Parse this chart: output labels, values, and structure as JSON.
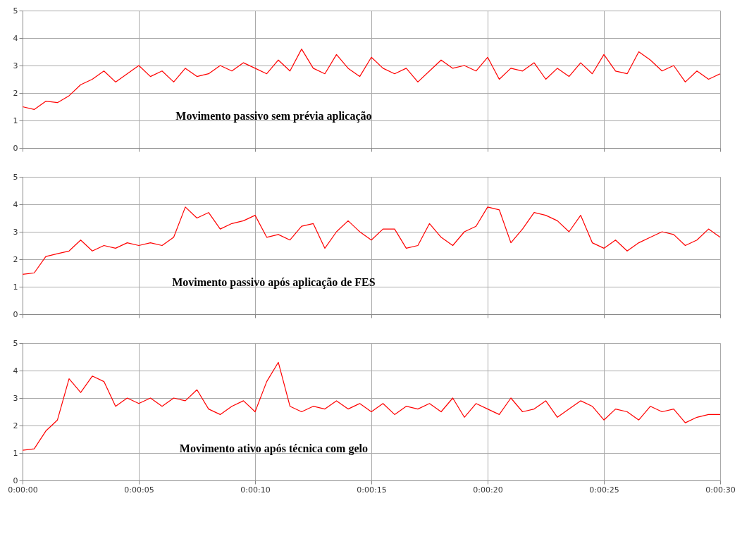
{
  "chart_data": [
    {
      "type": "line",
      "annotations": [
        "Movimento passivo sem prévia aplicação"
      ],
      "xlim": [
        0,
        30
      ],
      "xticks": [
        {
          "value": 0,
          "label": null
        },
        {
          "value": 5,
          "label": null
        },
        {
          "value": 10,
          "label": null
        },
        {
          "value": 15,
          "label": null
        },
        {
          "value": 20,
          "label": null
        },
        {
          "value": 25,
          "label": null
        },
        {
          "value": 30,
          "label": null
        }
      ],
      "ylim": [
        0,
        5
      ],
      "yticks": [
        0,
        1,
        2,
        3,
        4,
        5
      ],
      "grid": true,
      "tick_labels": "y",
      "line_style": "solid",
      "x": [
        0,
        0.5,
        1,
        1.5,
        2,
        2.5,
        3,
        3.5,
        4,
        4.5,
        5,
        5.5,
        6,
        6.5,
        7,
        7.5,
        8,
        8.5,
        9,
        9.5,
        10,
        10.5,
        11,
        11.5,
        12,
        12.5,
        13,
        13.5,
        14,
        14.5,
        15,
        15.5,
        16,
        16.5,
        17,
        17.5,
        18,
        18.5,
        19,
        19.5,
        20,
        20.5,
        21,
        21.5,
        22,
        22.5,
        23,
        23.5,
        24,
        24.5,
        25,
        25.5,
        26,
        26.5,
        27,
        27.5,
        28,
        28.5,
        29,
        29.5,
        30
      ],
      "series": [
        {
          "color": "#ff0000",
          "values": [
            1.5,
            1.4,
            1.7,
            1.65,
            1.9,
            2.3,
            2.5,
            2.8,
            2.4,
            2.7,
            3.0,
            2.6,
            2.8,
            2.4,
            2.9,
            2.6,
            2.7,
            3.0,
            2.8,
            3.1,
            2.9,
            2.7,
            3.2,
            2.8,
            3.6,
            2.9,
            2.7,
            3.4,
            2.9,
            2.6,
            3.3,
            2.9,
            2.7,
            2.9,
            2.4,
            2.8,
            3.2,
            2.9,
            3.0,
            2.8,
            3.3,
            2.5,
            2.9,
            2.8,
            3.1,
            2.5,
            2.9,
            2.6,
            3.1,
            2.7,
            3.4,
            2.8,
            2.7,
            3.5,
            3.2,
            2.8,
            3.0,
            2.4,
            2.8,
            2.5,
            2.7
          ]
        }
      ]
    },
    {
      "type": "line",
      "annotations": [
        "Movimento passivo após aplicação de FES"
      ],
      "xlim": [
        0,
        30
      ],
      "xticks": [
        {
          "value": 0,
          "label": null
        },
        {
          "value": 5,
          "label": null
        },
        {
          "value": 10,
          "label": null
        },
        {
          "value": 15,
          "label": null
        },
        {
          "value": 20,
          "label": null
        },
        {
          "value": 25,
          "label": null
        },
        {
          "value": 30,
          "label": null
        }
      ],
      "ylim": [
        0,
        5
      ],
      "yticks": [
        0,
        1,
        2,
        3,
        4,
        5
      ],
      "grid": true,
      "tick_labels": "y",
      "line_style": "solid",
      "x": [
        0,
        0.5,
        1,
        1.5,
        2,
        2.5,
        3,
        3.5,
        4,
        4.5,
        5,
        5.5,
        6,
        6.5,
        7,
        7.5,
        8,
        8.5,
        9,
        9.5,
        10,
        10.5,
        11,
        11.5,
        12,
        12.5,
        13,
        13.5,
        14,
        14.5,
        15,
        15.5,
        16,
        16.5,
        17,
        17.5,
        18,
        18.5,
        19,
        19.5,
        20,
        20.5,
        21,
        21.5,
        22,
        22.5,
        23,
        23.5,
        24,
        24.5,
        25,
        25.5,
        26,
        26.5,
        27,
        27.5,
        28,
        28.5,
        29,
        29.5,
        30
      ],
      "series": [
        {
          "color": "#ff0000",
          "values": [
            1.45,
            1.5,
            2.1,
            2.2,
            2.3,
            2.7,
            2.3,
            2.5,
            2.4,
            2.6,
            2.5,
            2.6,
            2.5,
            2.8,
            3.9,
            3.5,
            3.7,
            3.1,
            3.3,
            3.4,
            3.6,
            2.8,
            2.9,
            2.7,
            3.2,
            3.3,
            2.4,
            3.0,
            3.4,
            3.0,
            2.7,
            3.1,
            3.1,
            2.4,
            2.5,
            3.3,
            2.8,
            2.5,
            3.0,
            3.2,
            3.9,
            3.8,
            2.6,
            3.1,
            3.7,
            3.6,
            3.4,
            3.0,
            3.6,
            2.6,
            2.4,
            2.7,
            2.3,
            2.6,
            2.8,
            3.0,
            2.9,
            2.5,
            2.7,
            3.1,
            2.8
          ]
        }
      ]
    },
    {
      "type": "line",
      "annotations": [
        "Movimento ativo após técnica com gelo"
      ],
      "xlim": [
        0,
        30
      ],
      "xticks": [
        {
          "value": 0,
          "label": "0:00:00"
        },
        {
          "value": 5,
          "label": "0:00:05"
        },
        {
          "value": 10,
          "label": "0:00:10"
        },
        {
          "value": 15,
          "label": "0:00:15"
        },
        {
          "value": 20,
          "label": "0:00:20"
        },
        {
          "value": 25,
          "label": "0:00:25"
        },
        {
          "value": 30,
          "label": "0:00:30"
        }
      ],
      "ylim": [
        0,
        5
      ],
      "yticks": [
        0,
        1,
        2,
        3,
        4,
        5
      ],
      "grid": true,
      "line_style": "solid",
      "x": [
        0,
        0.5,
        1,
        1.5,
        2,
        2.5,
        3,
        3.5,
        4,
        4.5,
        5,
        5.5,
        6,
        6.5,
        7,
        7.5,
        8,
        8.5,
        9,
        9.5,
        10,
        10.5,
        11,
        11.5,
        12,
        12.5,
        13,
        13.5,
        14,
        14.5,
        15,
        15.5,
        16,
        16.5,
        17,
        17.5,
        18,
        18.5,
        19,
        19.5,
        20,
        20.5,
        21,
        21.5,
        22,
        22.5,
        23,
        23.5,
        24,
        24.5,
        25,
        25.5,
        26,
        26.5,
        27,
        27.5,
        28,
        28.5,
        29,
        29.5,
        30
      ],
      "series": [
        {
          "color": "#ff0000",
          "values": [
            1.1,
            1.15,
            1.8,
            2.2,
            3.7,
            3.2,
            3.8,
            3.6,
            2.7,
            3.0,
            2.8,
            3.0,
            2.7,
            3.0,
            2.9,
            3.3,
            2.6,
            2.4,
            2.7,
            2.9,
            2.5,
            3.6,
            4.3,
            2.7,
            2.5,
            2.7,
            2.6,
            2.9,
            2.6,
            2.8,
            2.5,
            2.8,
            2.4,
            2.7,
            2.6,
            2.8,
            2.5,
            3.0,
            2.3,
            2.8,
            2.6,
            2.4,
            3.0,
            2.5,
            2.6,
            2.9,
            2.3,
            2.6,
            2.9,
            2.7,
            2.2,
            2.6,
            2.5,
            2.2,
            2.7,
            2.5,
            2.6,
            2.1,
            2.3,
            2.4,
            2.4
          ]
        }
      ]
    }
  ]
}
